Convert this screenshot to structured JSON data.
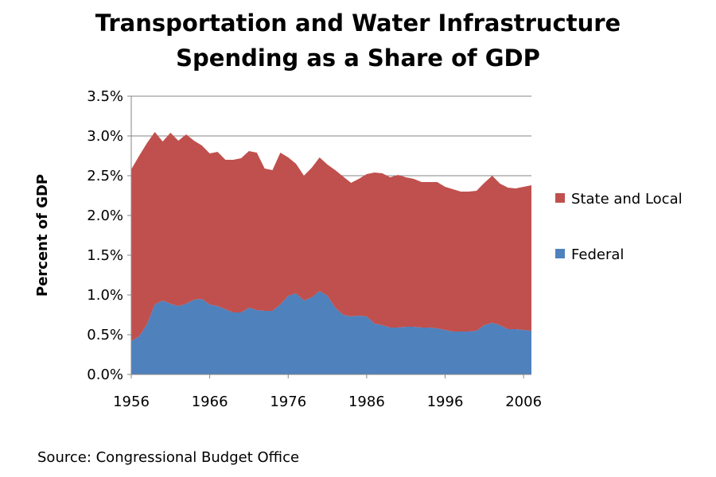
{
  "title_lines": [
    "Transportation and Water Infrastructure",
    "Spending as a Share of GDP"
  ],
  "source": "Source: Congressional Budget Office",
  "chart_data": {
    "type": "area",
    "stacked": true,
    "title": "Transportation and Water Infrastructure Spending as a Share of GDP",
    "xlabel": "",
    "ylabel": "Percent of GDP",
    "xlim": [
      1956,
      2007
    ],
    "ylim": [
      0,
      3.5
    ],
    "x_ticks": [
      1956,
      1966,
      1976,
      1986,
      1996,
      2006
    ],
    "y_ticks": [
      0,
      0.5,
      1.0,
      1.5,
      2.0,
      2.5,
      3.0,
      3.5
    ],
    "y_tick_labels": [
      "0.0%",
      "0.5%",
      "1.0%",
      "1.5%",
      "2.0%",
      "2.5%",
      "3.0%",
      "3.5%"
    ],
    "grid": "horizontal",
    "legend_position": "right",
    "x": [
      1956,
      1957,
      1958,
      1959,
      1960,
      1961,
      1962,
      1963,
      1964,
      1965,
      1966,
      1967,
      1968,
      1969,
      1970,
      1971,
      1972,
      1973,
      1974,
      1975,
      1976,
      1977,
      1978,
      1979,
      1980,
      1981,
      1982,
      1983,
      1984,
      1985,
      1986,
      1987,
      1988,
      1989,
      1990,
      1991,
      1992,
      1993,
      1994,
      1995,
      1996,
      1997,
      1998,
      1999,
      2000,
      2001,
      2002,
      2003,
      2004,
      2005,
      2006,
      2007
    ],
    "series": [
      {
        "name": "Federal",
        "color": "#4f81bd",
        "values": [
          0.42,
          0.48,
          0.63,
          0.88,
          0.93,
          0.89,
          0.86,
          0.89,
          0.94,
          0.95,
          0.88,
          0.86,
          0.82,
          0.78,
          0.78,
          0.84,
          0.81,
          0.8,
          0.8,
          0.88,
          0.99,
          1.02,
          0.93,
          0.97,
          1.05,
          0.99,
          0.84,
          0.75,
          0.73,
          0.74,
          0.73,
          0.64,
          0.62,
          0.59,
          0.59,
          0.6,
          0.6,
          0.59,
          0.59,
          0.58,
          0.56,
          0.54,
          0.54,
          0.54,
          0.55,
          0.62,
          0.65,
          0.62,
          0.57,
          0.57,
          0.56,
          0.55
        ]
      },
      {
        "name": "State and Local",
        "color": "#c0504d",
        "values": [
          2.16,
          2.27,
          2.28,
          2.17,
          2.0,
          2.15,
          2.08,
          2.13,
          2.0,
          1.93,
          1.9,
          1.94,
          1.88,
          1.92,
          1.94,
          1.97,
          1.98,
          1.79,
          1.77,
          1.91,
          1.74,
          1.63,
          1.57,
          1.63,
          1.68,
          1.65,
          1.73,
          1.74,
          1.68,
          1.72,
          1.79,
          1.9,
          1.91,
          1.89,
          1.92,
          1.88,
          1.86,
          1.83,
          1.83,
          1.84,
          1.8,
          1.79,
          1.76,
          1.76,
          1.76,
          1.79,
          1.85,
          1.78,
          1.78,
          1.77,
          1.8,
          1.83
        ]
      }
    ]
  }
}
